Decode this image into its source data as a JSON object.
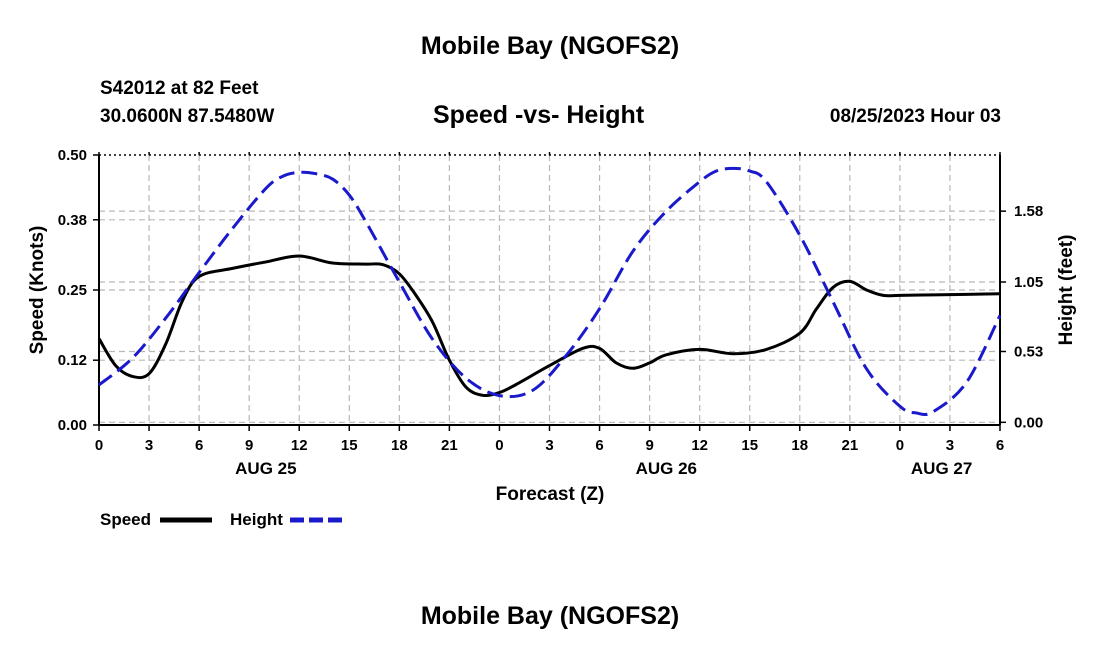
{
  "header": {
    "title": "Mobile Bay (NGOFS2)",
    "station": "S42012 at 82 Feet",
    "coords": "30.0600N  87.5480W",
    "subtitle": "Speed -vs- Height",
    "datetime": "08/25/2023 Hour 03"
  },
  "footer": {
    "title": "Mobile Bay (NGOFS2)"
  },
  "legend": {
    "speed_label": "Speed",
    "height_label": "Height"
  },
  "colors": {
    "speed": "#000000",
    "height": "#1a1acc",
    "grid": "#b8b8b8"
  },
  "chart_data": {
    "type": "line",
    "xlabel": "Forecast (Z)",
    "ylabel": "Speed (Knots)",
    "y2label": "Height (feet)",
    "x_range_hours": [
      0,
      54
    ],
    "x_tick_hours": [
      0,
      3,
      6,
      9,
      12,
      15,
      18,
      21,
      24,
      27,
      30,
      33,
      36,
      39,
      42,
      45,
      48,
      51,
      54
    ],
    "x_tick_labels": [
      "0",
      "3",
      "6",
      "9",
      "12",
      "15",
      "18",
      "21",
      "0",
      "3",
      "6",
      "9",
      "12",
      "15",
      "18",
      "21",
      "0",
      "3",
      "6"
    ],
    "date_labels": [
      {
        "text": "AUG 25",
        "hour": 10
      },
      {
        "text": "AUG 26",
        "hour": 34
      },
      {
        "text": "AUG 27",
        "hour": 50.5
      }
    ],
    "ylim": [
      0,
      0.5
    ],
    "y_ticks": [
      0.0,
      0.12,
      0.25,
      0.38,
      0.5
    ],
    "y_tick_labels": [
      "0.00",
      "0.12",
      "0.25",
      "0.38",
      "0.50"
    ],
    "y2lim": [
      -0.02,
      2.0
    ],
    "y2_ticks": [
      0.0,
      0.53,
      1.05,
      1.58
    ],
    "y2_tick_labels": [
      "0.00",
      "0.53",
      "1.05",
      "1.58"
    ],
    "grid": true,
    "series": [
      {
        "name": "Speed",
        "axis": "left",
        "style": "solid",
        "x": [
          0,
          1,
          2,
          3,
          4,
          5,
          6,
          8,
          10,
          12,
          14,
          16,
          17,
          18,
          19,
          20,
          21,
          22,
          23,
          24,
          25,
          27,
          29,
          30,
          31,
          32,
          33,
          34,
          36,
          38,
          40,
          42,
          43,
          44,
          45,
          46,
          47,
          48,
          50,
          52,
          54
        ],
        "y": [
          0.16,
          0.11,
          0.09,
          0.095,
          0.15,
          0.23,
          0.275,
          0.29,
          0.302,
          0.313,
          0.3,
          0.298,
          0.297,
          0.28,
          0.24,
          0.19,
          0.12,
          0.07,
          0.055,
          0.06,
          0.075,
          0.11,
          0.142,
          0.142,
          0.115,
          0.105,
          0.115,
          0.13,
          0.14,
          0.132,
          0.14,
          0.17,
          0.215,
          0.255,
          0.266,
          0.25,
          0.24,
          0.24,
          0.241,
          0.242,
          0.243
        ]
      },
      {
        "name": "Height",
        "axis": "right",
        "style": "dashed",
        "x": [
          0,
          2,
          4,
          6,
          8,
          10,
          11,
          12,
          13,
          14,
          15,
          16,
          18,
          20,
          22,
          24,
          26,
          28,
          30,
          32,
          34,
          36,
          37,
          38,
          39,
          40,
          42,
          44,
          46,
          48,
          49,
          50,
          52,
          54
        ],
        "y": [
          0.28,
          0.48,
          0.78,
          1.12,
          1.45,
          1.75,
          1.84,
          1.87,
          1.86,
          1.82,
          1.7,
          1.5,
          1.05,
          0.62,
          0.33,
          0.2,
          0.24,
          0.5,
          0.85,
          1.28,
          1.58,
          1.8,
          1.88,
          1.9,
          1.88,
          1.8,
          1.4,
          0.9,
          0.4,
          0.12,
          0.07,
          0.08,
          0.3,
          0.8
        ]
      }
    ]
  }
}
